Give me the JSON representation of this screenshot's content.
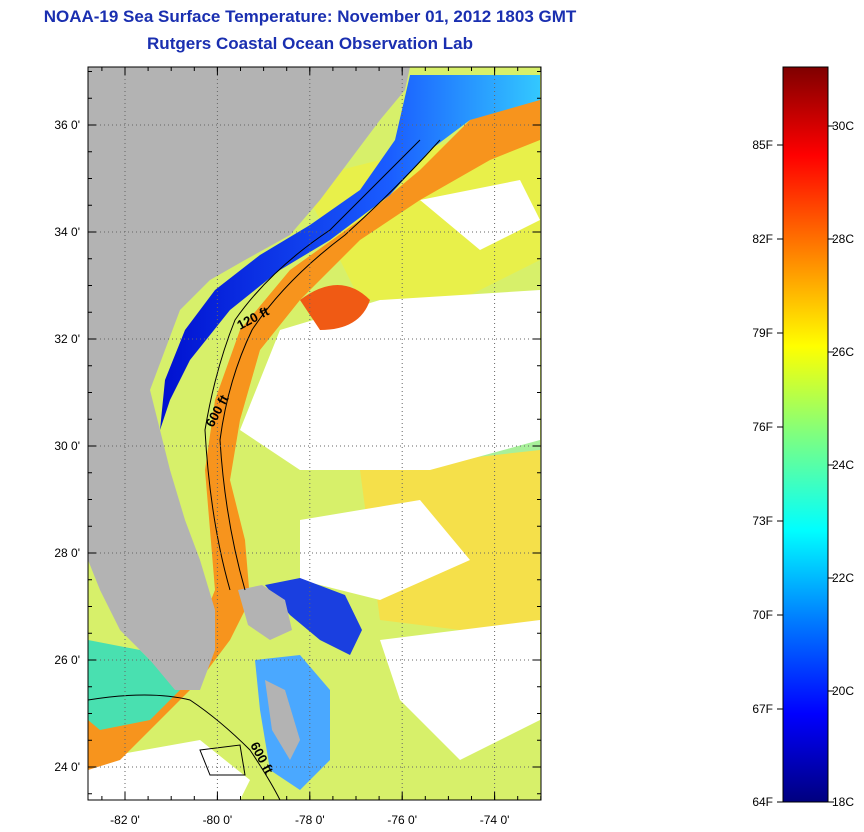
{
  "title": "NOAA-19 Sea Surface Temperature:  November 01, 2012 1803 GMT",
  "subtitle": "Rutgers Coastal Ocean Observation Lab",
  "map": {
    "lat_labels": [
      "36 0'",
      "34 0'",
      "32 0'",
      "30 0'",
      "28 0'",
      "26 0'",
      "24 0'"
    ],
    "lat_values": [
      36,
      34,
      32,
      30,
      28,
      26,
      24
    ],
    "lon_labels": [
      "-82 0'",
      "-80 0'",
      "-78 0'",
      "-76 0'",
      "-74 0'"
    ],
    "lon_values": [
      -82,
      -80,
      -78,
      -76,
      -74
    ],
    "contour_labels": [
      "120 ft",
      "600 ft",
      "600 ft"
    ],
    "land_color": "#b3b3b3"
  },
  "colorbar": {
    "f_labels": [
      "85F",
      "82F",
      "79F",
      "76F",
      "73F",
      "70F",
      "67F",
      "64F"
    ],
    "c_labels": [
      "30C",
      "28C",
      "26C",
      "24C",
      "22C",
      "20C",
      "18C"
    ],
    "colors": [
      "#00007f",
      "#0000ff",
      "#007fff",
      "#00ffff",
      "#7fff7f",
      "#ffff00",
      "#ff7f00",
      "#ff0000",
      "#7f0000"
    ]
  }
}
